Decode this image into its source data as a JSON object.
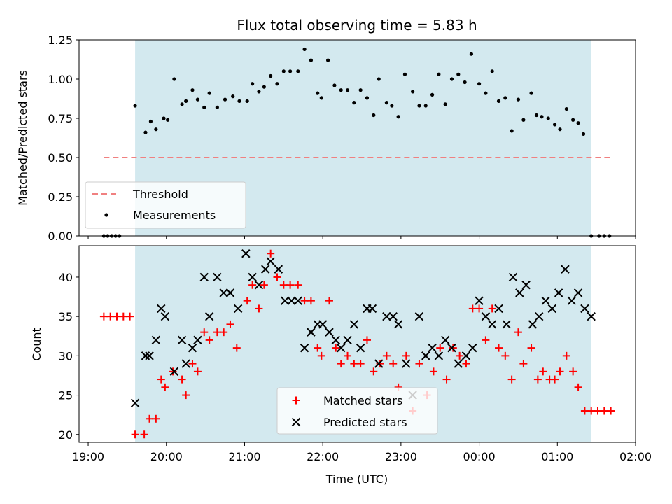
{
  "chart_data": {
    "type": "scatter",
    "title": "Flux total observing time = 5.83 h",
    "xlabel": "Time (UTC)",
    "x_ticks": [
      "19:00",
      "20:00",
      "21:00",
      "22:00",
      "23:00",
      "00:00",
      "01:00",
      "02:00"
    ],
    "x_range": [
      "18:53",
      "02:00"
    ],
    "observing_window": [
      "19:36",
      "01:26"
    ],
    "observing_window_color": "#d3e9ef",
    "top_panel": {
      "ylabel": "Matched/Predicted stars",
      "ylim": [
        0,
        1.25
      ],
      "y_ticks": [
        "0.00",
        "0.25",
        "0.50",
        "0.75",
        "1.00",
        "1.25"
      ],
      "legend_position": "lower-left",
      "threshold": {
        "name": "Threshold",
        "value": 0.5,
        "x_start": "19:12",
        "x_end": "01:42",
        "color": "#f08080"
      },
      "series": [
        {
          "name": "Measurements",
          "color": "#000000",
          "x": [
            "19:12",
            "19:15",
            "19:18",
            "19:21",
            "19:24",
            "19:36",
            "19:44",
            "19:48",
            "19:52",
            "19:58",
            "20:01",
            "20:06",
            "20:12",
            "20:15",
            "20:20",
            "20:24",
            "20:29",
            "20:33",
            "20:39",
            "20:45",
            "20:51",
            "20:56",
            "21:02",
            "21:06",
            "21:11",
            "21:15",
            "21:20",
            "21:25",
            "21:30",
            "21:35",
            "21:41",
            "21:46",
            "21:51",
            "21:56",
            "21:59",
            "22:04",
            "22:09",
            "22:14",
            "22:19",
            "22:24",
            "22:29",
            "22:34",
            "22:39",
            "22:43",
            "22:49",
            "22:53",
            "22:58",
            "23:03",
            "23:09",
            "23:14",
            "23:19",
            "23:24",
            "23:29",
            "23:34",
            "23:39",
            "23:44",
            "23:49",
            "23:54",
            "00:00",
            "00:05",
            "00:10",
            "00:15",
            "00:20",
            "00:25",
            "00:30",
            "00:34",
            "00:40",
            "00:44",
            "00:48",
            "00:53",
            "00:58",
            "01:02",
            "01:07",
            "01:12",
            "01:16",
            "01:20",
            "01:26",
            "01:32",
            "01:36",
            "01:40"
          ],
          "y": [
            0,
            0,
            0,
            0,
            0,
            0.83,
            0.66,
            0.73,
            0.68,
            0.75,
            0.74,
            1.0,
            0.84,
            0.86,
            0.93,
            0.87,
            0.82,
            0.91,
            0.82,
            0.87,
            0.89,
            0.86,
            0.86,
            0.97,
            0.92,
            0.95,
            1.02,
            0.97,
            1.05,
            1.05,
            1.05,
            1.19,
            1.12,
            0.91,
            0.88,
            1.12,
            0.96,
            0.93,
            0.93,
            0.85,
            0.93,
            0.88,
            0.77,
            1.0,
            0.85,
            0.83,
            0.76,
            1.03,
            0.92,
            0.83,
            0.83,
            0.9,
            1.03,
            0.84,
            1.0,
            1.03,
            0.98,
            1.16,
            0.97,
            0.91,
            1.05,
            0.86,
            0.88,
            0.67,
            0.87,
            0.74,
            0.91,
            0.77,
            0.76,
            0.75,
            0.71,
            0.68,
            0.81,
            0.74,
            0.72,
            0.65,
            0,
            0,
            0,
            0
          ]
        }
      ]
    },
    "bottom_panel": {
      "ylabel": "Count",
      "ylim": [
        19,
        44
      ],
      "y_ticks": [
        "20",
        "25",
        "30",
        "35",
        "40"
      ],
      "legend_position": "lower-center",
      "series": [
        {
          "name": "Matched stars",
          "color": "#ff0000",
          "marker": "plus",
          "x": [
            "19:12",
            "19:17",
            "19:22",
            "19:27",
            "19:32",
            "19:36",
            "19:43",
            "19:47",
            "19:52",
            "19:56",
            "19:59",
            "20:05",
            "20:12",
            "20:15",
            "20:20",
            "20:24",
            "20:29",
            "20:33",
            "20:39",
            "20:44",
            "20:49",
            "20:54",
            "21:02",
            "21:06",
            "21:11",
            "21:15",
            "21:20",
            "21:25",
            "21:30",
            "21:35",
            "21:41",
            "21:46",
            "21:51",
            "21:56",
            "21:59",
            "22:05",
            "22:10",
            "22:14",
            "22:19",
            "22:24",
            "22:29",
            "22:34",
            "22:39",
            "22:44",
            "22:49",
            "22:54",
            "22:58",
            "23:04",
            "23:09",
            "23:14",
            "23:20",
            "23:25",
            "23:30",
            "23:35",
            "23:40",
            "23:45",
            "23:50",
            "23:55",
            "00:00",
            "00:05",
            "00:10",
            "00:15",
            "00:20",
            "00:25",
            "00:30",
            "00:34",
            "00:40",
            "00:45",
            "00:49",
            "00:54",
            "00:58",
            "01:02",
            "01:07",
            "01:12",
            "01:16",
            "01:21",
            "01:26",
            "01:31",
            "01:36",
            "01:41"
          ],
          "y": [
            35,
            35,
            35,
            35,
            35,
            20,
            20,
            22,
            22,
            27,
            26,
            28,
            27,
            25,
            29,
            28,
            33,
            32,
            33,
            33,
            34,
            31,
            37,
            39,
            36,
            39,
            43,
            40,
            39,
            39,
            39,
            37,
            37,
            31,
            30,
            37,
            31,
            29,
            30,
            29,
            29,
            32,
            28,
            29,
            30,
            29,
            26,
            30,
            23,
            29,
            25,
            28,
            31,
            27,
            31,
            30,
            29,
            36,
            36,
            32,
            36,
            31,
            30,
            27,
            33,
            29,
            31,
            27,
            28,
            27,
            27,
            28,
            30,
            28,
            26,
            23,
            23,
            23,
            23,
            23
          ]
        },
        {
          "name": "Predicted stars",
          "color": "#000000",
          "marker": "x",
          "x": [
            "19:36",
            "19:44",
            "19:47",
            "19:52",
            "19:56",
            "19:59",
            "20:06",
            "20:12",
            "20:15",
            "20:20",
            "20:24",
            "20:29",
            "20:33",
            "20:39",
            "20:44",
            "20:49",
            "20:55",
            "21:01",
            "21:06",
            "21:11",
            "21:16",
            "21:20",
            "21:26",
            "21:31",
            "21:36",
            "21:41",
            "21:46",
            "21:51",
            "21:56",
            "22:00",
            "22:05",
            "22:10",
            "22:14",
            "22:19",
            "22:24",
            "22:29",
            "22:34",
            "22:38",
            "22:43",
            "22:49",
            "22:54",
            "22:58",
            "23:04",
            "23:09",
            "23:14",
            "23:19",
            "23:24",
            "23:29",
            "23:34",
            "23:39",
            "23:44",
            "23:50",
            "23:55",
            "00:00",
            "00:05",
            "00:10",
            "00:15",
            "00:21",
            "00:26",
            "00:31",
            "00:36",
            "00:41",
            "00:46",
            "00:51",
            "00:56",
            "01:01",
            "01:06",
            "01:11",
            "01:16",
            "01:21",
            "01:26"
          ],
          "y": [
            24,
            30,
            30,
            32,
            36,
            35,
            28,
            32,
            29,
            31,
            32,
            40,
            35,
            40,
            38,
            38,
            36,
            43,
            40,
            39,
            41,
            42,
            41,
            37,
            37,
            37,
            31,
            33,
            34,
            34,
            33,
            32,
            31,
            32,
            34,
            31,
            36,
            36,
            29,
            35,
            35,
            34,
            29,
            25,
            35,
            30,
            31,
            30,
            32,
            31,
            29,
            30,
            31,
            37,
            35,
            34,
            36,
            34,
            40,
            38,
            39,
            34,
            35,
            37,
            36,
            38,
            41,
            37,
            38,
            36,
            35
          ]
        }
      ]
    }
  }
}
